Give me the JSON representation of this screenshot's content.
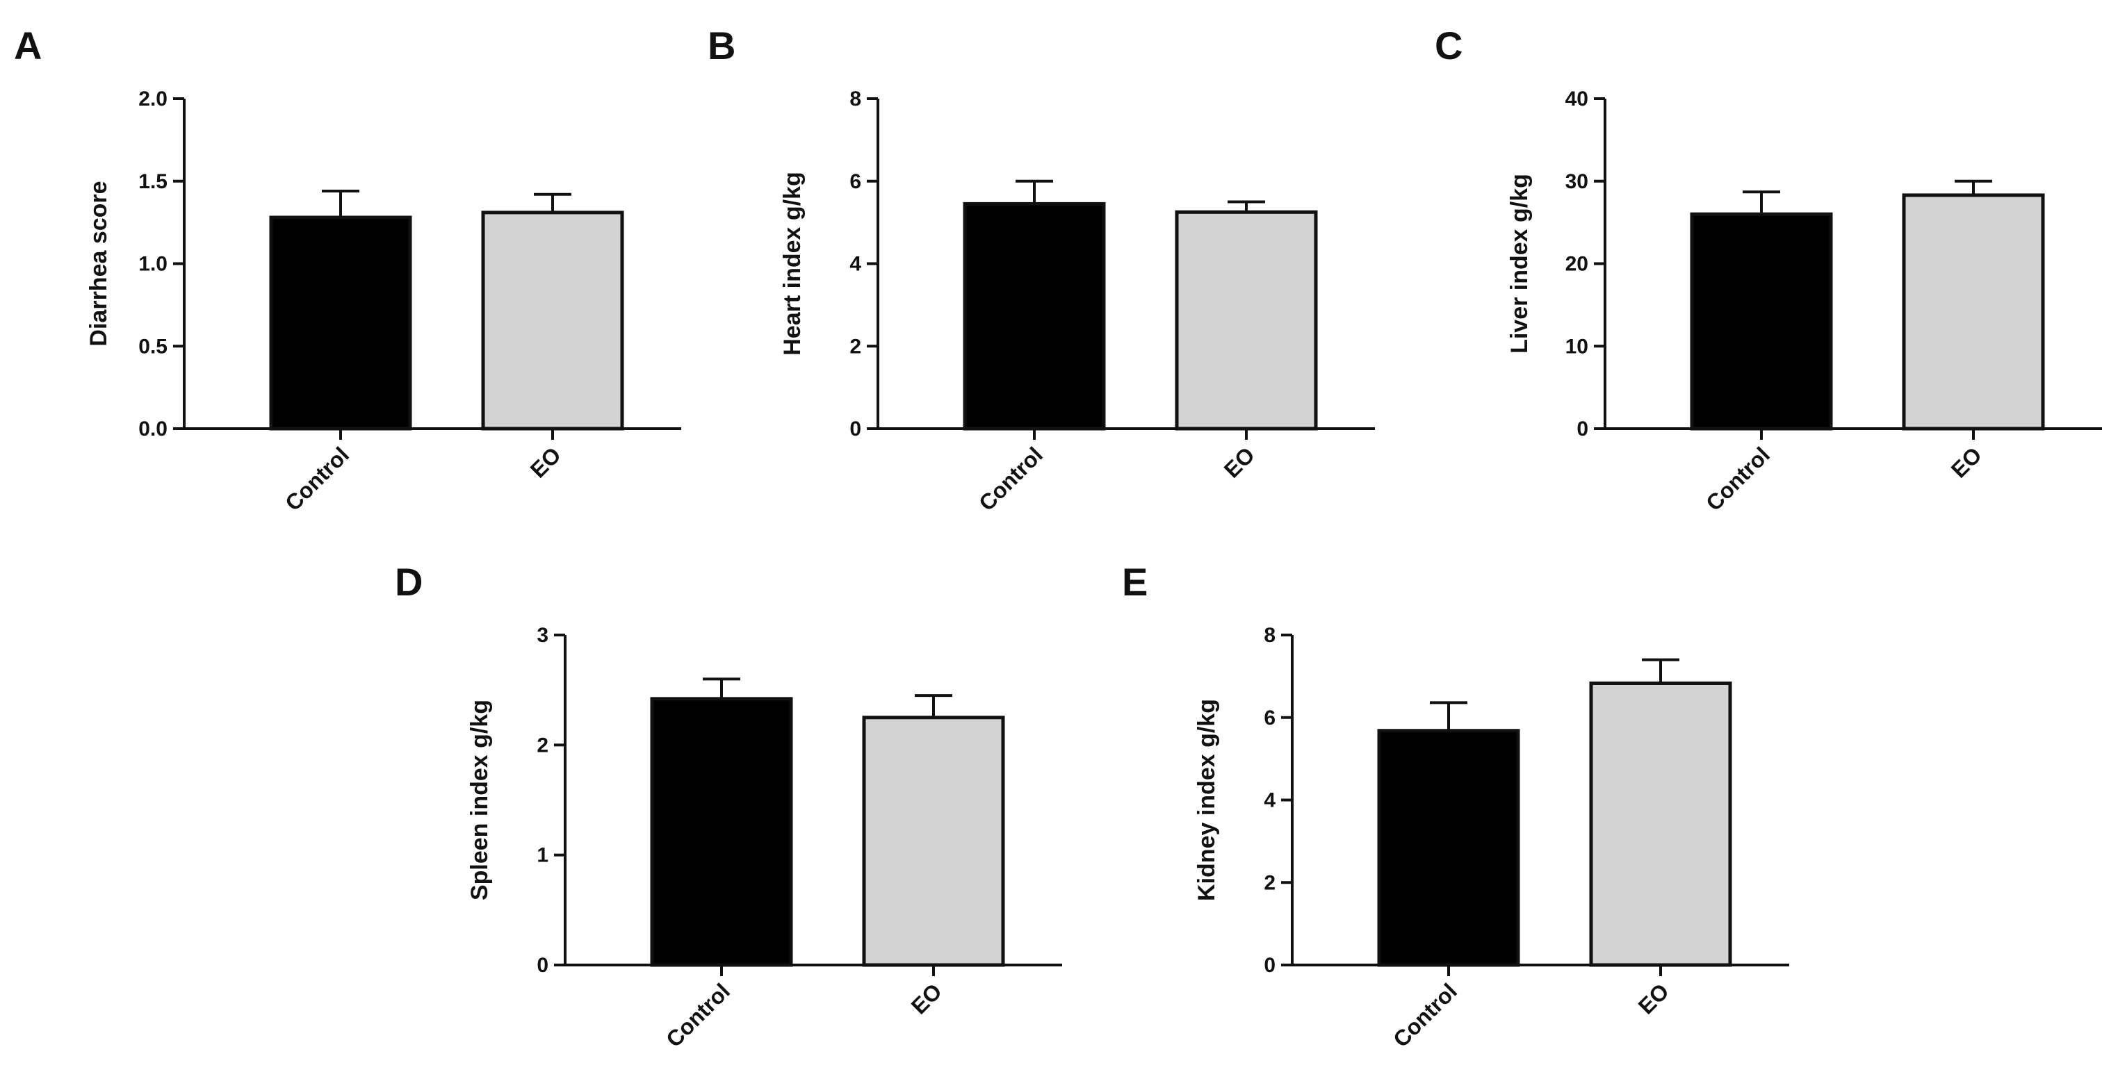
{
  "chart_data": [
    {
      "id": "A",
      "type": "bar",
      "panel_label": "A",
      "ylabel": "Diarrhea score",
      "ylim": [
        0,
        2.0
      ],
      "yticks": [
        "0.0",
        "0.5",
        "1.0",
        "1.5",
        "2.0"
      ],
      "ytick_values": [
        0,
        0.5,
        1.0,
        1.5,
        2.0
      ],
      "categories": [
        "Control",
        "EO"
      ],
      "values": [
        1.28,
        1.31
      ],
      "errors": [
        0.16,
        0.11
      ],
      "colors": [
        "#000000",
        "#d3d3d3"
      ]
    },
    {
      "id": "B",
      "type": "bar",
      "panel_label": "B",
      "ylabel": "Heart index g/kg",
      "ylim": [
        0,
        8
      ],
      "yticks": [
        "0",
        "2",
        "4",
        "6",
        "8"
      ],
      "ytick_values": [
        0,
        2,
        4,
        6,
        8
      ],
      "categories": [
        "Control",
        "EO"
      ],
      "values": [
        5.45,
        5.25
      ],
      "errors": [
        0.55,
        0.25
      ],
      "colors": [
        "#000000",
        "#d3d3d3"
      ]
    },
    {
      "id": "C",
      "type": "bar",
      "panel_label": "C",
      "ylabel": "Liver index g/kg",
      "ylim": [
        0,
        40
      ],
      "yticks": [
        "0",
        "10",
        "20",
        "30",
        "40"
      ],
      "ytick_values": [
        0,
        10,
        20,
        30,
        40
      ],
      "categories": [
        "Control",
        "EO"
      ],
      "values": [
        26.0,
        28.3
      ],
      "errors": [
        2.7,
        1.7
      ],
      "colors": [
        "#000000",
        "#d3d3d3"
      ]
    },
    {
      "id": "D",
      "type": "bar",
      "panel_label": "D",
      "ylabel": "Spleen index g/kg",
      "ylim": [
        0,
        3
      ],
      "yticks": [
        "0",
        "1",
        "2",
        "3"
      ],
      "ytick_values": [
        0,
        1,
        2,
        3
      ],
      "categories": [
        "Control",
        "EO"
      ],
      "values": [
        2.42,
        2.25
      ],
      "errors": [
        0.18,
        0.2
      ],
      "colors": [
        "#000000",
        "#d3d3d3"
      ]
    },
    {
      "id": "E",
      "type": "bar",
      "panel_label": "E",
      "ylabel": "Kidney index g/kg",
      "ylim": [
        0,
        8
      ],
      "yticks": [
        "0",
        "2",
        "4",
        "6",
        "8"
      ],
      "ytick_values": [
        0,
        2,
        4,
        6,
        8
      ],
      "categories": [
        "Control",
        "EO"
      ],
      "values": [
        5.68,
        6.83
      ],
      "errors": [
        0.68,
        0.57
      ],
      "colors": [
        "#000000",
        "#d3d3d3"
      ]
    }
  ]
}
